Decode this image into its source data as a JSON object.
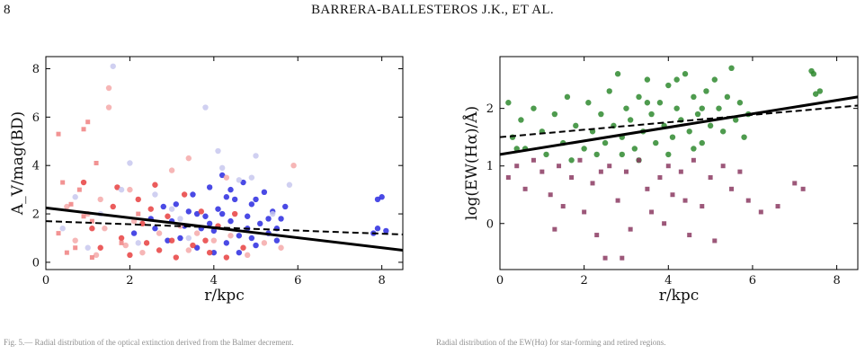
{
  "page": {
    "number": "8",
    "running_header": "BARRERA-BALLESTEROS J.K., ET AL."
  },
  "captions": {
    "left": "Fig. 5.— Radial distribution of the optical extinction derived from the Balmer decrement.",
    "right": "Radial distribution of the EW(Hα) for star-forming and retired regions."
  },
  "chart_data": [
    {
      "type": "scatter",
      "title": "",
      "xlabel": "r/kpc",
      "ylabel": "A_V/mag(BD)",
      "xlim": [
        0,
        8.5
      ],
      "ylim": [
        -0.3,
        8.5
      ],
      "xticks": [
        0,
        2,
        4,
        6,
        8
      ],
      "yticks": [
        0,
        2,
        4,
        6,
        8
      ],
      "grid": false,
      "series": [
        {
          "marker": "circle",
          "color": "#2a2ae0",
          "points": [
            [
              2.1,
              1.2
            ],
            [
              2.5,
              1.8
            ],
            [
              2.9,
              0.9
            ],
            [
              3.1,
              2.4
            ],
            [
              3.3,
              1.5
            ],
            [
              3.5,
              2.8
            ],
            [
              3.6,
              0.6
            ],
            [
              3.8,
              1.9
            ],
            [
              3.9,
              3.1
            ],
            [
              4.0,
              1.3
            ],
            [
              4.1,
              2.2
            ],
            [
              4.2,
              3.6
            ],
            [
              4.3,
              0.8
            ],
            [
              4.4,
              1.7
            ],
            [
              4.5,
              2.6
            ],
            [
              4.6,
              1.1
            ],
            [
              4.7,
              3.3
            ],
            [
              4.8,
              1.9
            ],
            [
              4.9,
              2.4
            ],
            [
              5.0,
              0.7
            ],
            [
              5.1,
              1.6
            ],
            [
              5.2,
              2.9
            ],
            [
              5.3,
              1.2
            ],
            [
              5.4,
              2.1
            ],
            [
              5.5,
              0.9
            ],
            [
              5.6,
              1.8
            ],
            [
              5.7,
              2.3
            ],
            [
              4.2,
              2.0
            ],
            [
              4.0,
              0.4
            ],
            [
              3.7,
              1.4
            ],
            [
              3.4,
              2.1
            ],
            [
              3.2,
              1.0
            ],
            [
              2.8,
              2.3
            ],
            [
              2.6,
              1.4
            ],
            [
              4.6,
              0.4
            ],
            [
              5.0,
              2.6
            ],
            [
              4.4,
              3.0
            ],
            [
              3.9,
              1.6
            ],
            [
              4.8,
              1.4
            ],
            [
              5.3,
              1.8
            ],
            [
              7.9,
              2.6
            ],
            [
              8.0,
              2.7
            ],
            [
              7.9,
              1.4
            ],
            [
              8.1,
              1.3
            ],
            [
              7.8,
              1.2
            ],
            [
              4.3,
              2.7
            ],
            [
              3.6,
              2.0
            ],
            [
              4.9,
              1.0
            ],
            [
              5.5,
              1.4
            ],
            [
              3.0,
              1.7
            ]
          ]
        },
        {
          "marker": "circle",
          "color": "#e84040",
          "points": [
            [
              0.9,
              3.3
            ],
            [
              1.1,
              1.4
            ],
            [
              1.3,
              0.6
            ],
            [
              1.6,
              2.3
            ],
            [
              1.8,
              1.0
            ],
            [
              2.0,
              0.3
            ],
            [
              2.2,
              2.6
            ],
            [
              2.4,
              0.8
            ],
            [
              2.6,
              3.2
            ],
            [
              2.7,
              0.5
            ],
            [
              2.9,
              1.9
            ],
            [
              3.1,
              0.2
            ],
            [
              3.3,
              2.8
            ],
            [
              3.5,
              0.7
            ],
            [
              3.7,
              2.1
            ],
            [
              3.9,
              0.4
            ],
            [
              4.1,
              1.5
            ],
            [
              4.3,
              0.2
            ],
            [
              4.5,
              2.0
            ],
            [
              4.7,
              0.6
            ],
            [
              2.3,
              1.6
            ],
            [
              1.7,
              3.1
            ],
            [
              3.0,
              0.9
            ],
            [
              3.8,
              0.9
            ],
            [
              2.5,
              2.2
            ]
          ]
        },
        {
          "marker": "circle",
          "color": "#f4a9a9",
          "points": [
            [
              0.7,
              0.9
            ],
            [
              1.0,
              2.0
            ],
            [
              1.2,
              0.3
            ],
            [
              1.4,
              1.4
            ],
            [
              1.5,
              7.2
            ],
            [
              1.5,
              6.4
            ],
            [
              1.9,
              0.7
            ],
            [
              2.1,
              1.7
            ],
            [
              2.3,
              0.4
            ],
            [
              2.7,
              1.2
            ],
            [
              3.2,
              1.5
            ],
            [
              3.4,
              0.5
            ],
            [
              3.6,
              1.2
            ],
            [
              4.0,
              0.9
            ],
            [
              4.4,
              1.1
            ],
            [
              4.8,
              0.3
            ],
            [
              5.2,
              0.8
            ],
            [
              5.6,
              0.6
            ],
            [
              5.9,
              4.0
            ],
            [
              2.0,
              3.0
            ],
            [
              3.0,
              3.8
            ],
            [
              3.4,
              4.3
            ],
            [
              4.3,
              3.5
            ],
            [
              1.3,
              2.6
            ],
            [
              0.5,
              2.3
            ]
          ]
        },
        {
          "marker": "circle",
          "color": "#c8c8ee",
          "points": [
            [
              0.4,
              1.4
            ],
            [
              0.7,
              2.7
            ],
            [
              1.0,
              0.6
            ],
            [
              1.3,
              2.0
            ],
            [
              1.6,
              8.1
            ],
            [
              1.8,
              3.0
            ],
            [
              2.2,
              0.8
            ],
            [
              2.6,
              2.8
            ],
            [
              3.0,
              2.2
            ],
            [
              3.4,
              1.0
            ],
            [
              3.8,
              6.4
            ],
            [
              4.2,
              3.9
            ],
            [
              4.6,
              3.4
            ],
            [
              5.0,
              4.4
            ],
            [
              5.4,
              2.0
            ],
            [
              5.8,
              3.2
            ],
            [
              2.0,
              4.1
            ],
            [
              4.1,
              4.6
            ],
            [
              4.9,
              3.5
            ],
            [
              3.2,
              1.8
            ]
          ]
        },
        {
          "marker": "square",
          "color": "#f08080",
          "points": [
            [
              0.3,
              1.2
            ],
            [
              0.5,
              0.4
            ],
            [
              0.7,
              0.6
            ],
            [
              0.9,
              1.9
            ],
            [
              1.1,
              1.7
            ],
            [
              0.8,
              3.0
            ],
            [
              0.6,
              2.4
            ],
            [
              0.3,
              5.3
            ],
            [
              0.9,
              5.5
            ],
            [
              1.0,
              5.8
            ],
            [
              1.2,
              4.1
            ],
            [
              0.4,
              3.3
            ],
            [
              1.1,
              0.2
            ],
            [
              1.8,
              0.8
            ],
            [
              2.2,
              2.0
            ]
          ]
        }
      ],
      "fits": [
        {
          "style": "solid",
          "x": [
            0,
            8.5
          ],
          "y": [
            2.25,
            0.5
          ]
        },
        {
          "style": "dashed",
          "x": [
            0,
            8.5
          ],
          "y": [
            1.7,
            1.15
          ]
        }
      ]
    },
    {
      "type": "scatter",
      "title": "",
      "xlabel": "r/kpc",
      "ylabel": "log(EW(Hα)/Å)",
      "xlim": [
        0,
        8.5
      ],
      "ylim": [
        -0.8,
        2.9
      ],
      "xticks": [
        0,
        2,
        4,
        6,
        8
      ],
      "yticks": [
        0,
        1,
        2
      ],
      "grid": false,
      "series": [
        {
          "name": "",
          "marker": "circle",
          "color": "#2f8a2f",
          "points": [
            [
              0.3,
              1.5
            ],
            [
              0.5,
              1.8
            ],
            [
              0.6,
              1.3
            ],
            [
              0.8,
              2.0
            ],
            [
              1.0,
              1.6
            ],
            [
              1.1,
              1.2
            ],
            [
              1.3,
              1.9
            ],
            [
              1.5,
              1.4
            ],
            [
              1.6,
              2.2
            ],
            [
              1.8,
              1.7
            ],
            [
              2.0,
              1.3
            ],
            [
              2.1,
              2.1
            ],
            [
              2.2,
              1.6
            ],
            [
              2.4,
              1.9
            ],
            [
              2.5,
              1.4
            ],
            [
              2.6,
              2.3
            ],
            [
              2.7,
              1.7
            ],
            [
              2.8,
              2.6
            ],
            [
              2.9,
              1.5
            ],
            [
              3.0,
              2.0
            ],
            [
              3.1,
              1.8
            ],
            [
              3.2,
              1.3
            ],
            [
              3.3,
              2.2
            ],
            [
              3.4,
              1.6
            ],
            [
              3.5,
              2.5
            ],
            [
              3.6,
              1.9
            ],
            [
              3.7,
              1.4
            ],
            [
              3.8,
              2.1
            ],
            [
              3.9,
              1.7
            ],
            [
              4.0,
              2.4
            ],
            [
              4.1,
              1.5
            ],
            [
              4.2,
              2.0
            ],
            [
              4.3,
              1.8
            ],
            [
              4.4,
              2.6
            ],
            [
              4.5,
              1.6
            ],
            [
              4.6,
              2.2
            ],
            [
              4.7,
              1.9
            ],
            [
              4.8,
              1.4
            ],
            [
              4.9,
              2.3
            ],
            [
              5.0,
              1.7
            ],
            [
              5.1,
              2.5
            ],
            [
              5.2,
              2.0
            ],
            [
              5.3,
              1.6
            ],
            [
              5.4,
              2.2
            ],
            [
              5.5,
              2.7
            ],
            [
              5.6,
              1.8
            ],
            [
              5.7,
              2.1
            ],
            [
              5.8,
              1.5
            ],
            [
              5.9,
              1.9
            ],
            [
              3.3,
              1.1
            ],
            [
              4.0,
              1.2
            ],
            [
              4.6,
              1.3
            ],
            [
              2.3,
              1.2
            ],
            [
              1.7,
              1.1
            ],
            [
              0.2,
              2.1
            ],
            [
              0.4,
              1.3
            ],
            [
              3.5,
              2.1
            ],
            [
              4.2,
              2.5
            ],
            [
              4.8,
              2.0
            ],
            [
              2.9,
              1.2
            ],
            [
              7.4,
              2.65
            ],
            [
              7.5,
              2.25
            ],
            [
              7.6,
              2.3
            ],
            [
              7.45,
              2.6
            ]
          ]
        },
        {
          "name": "",
          "marker": "square",
          "color": "#8b3a62",
          "points": [
            [
              0.2,
              0.8
            ],
            [
              0.4,
              1.0
            ],
            [
              0.6,
              0.6
            ],
            [
              0.8,
              1.1
            ],
            [
              1.0,
              0.9
            ],
            [
              1.2,
              0.5
            ],
            [
              1.4,
              1.0
            ],
            [
              1.5,
              0.3
            ],
            [
              1.7,
              0.8
            ],
            [
              1.9,
              1.1
            ],
            [
              2.0,
              0.2
            ],
            [
              2.2,
              0.7
            ],
            [
              2.3,
              -0.2
            ],
            [
              2.4,
              0.9
            ],
            [
              2.5,
              -0.6
            ],
            [
              2.6,
              1.0
            ],
            [
              2.8,
              0.4
            ],
            [
              3.0,
              0.9
            ],
            [
              3.1,
              -0.1
            ],
            [
              3.3,
              1.1
            ],
            [
              3.5,
              0.6
            ],
            [
              3.6,
              0.2
            ],
            [
              3.8,
              0.8
            ],
            [
              4.0,
              1.0
            ],
            [
              4.1,
              0.5
            ],
            [
              4.3,
              0.9
            ],
            [
              4.5,
              -0.2
            ],
            [
              4.6,
              1.1
            ],
            [
              4.8,
              0.3
            ],
            [
              5.0,
              0.8
            ],
            [
              5.1,
              -0.3
            ],
            [
              5.3,
              1.0
            ],
            [
              5.5,
              0.6
            ],
            [
              5.7,
              0.9
            ],
            [
              5.9,
              0.4
            ],
            [
              6.2,
              0.2
            ],
            [
              6.6,
              0.3
            ],
            [
              7.0,
              0.7
            ],
            [
              7.2,
              0.6
            ],
            [
              1.3,
              -0.1
            ],
            [
              2.9,
              -0.6
            ],
            [
              3.9,
              0.0
            ],
            [
              4.4,
              0.4
            ]
          ]
        }
      ],
      "fits": [
        {
          "style": "solid",
          "x": [
            0,
            8.5
          ],
          "y": [
            1.2,
            2.2
          ]
        },
        {
          "style": "dashed",
          "x": [
            0,
            8.5
          ],
          "y": [
            1.5,
            2.05
          ]
        }
      ]
    }
  ]
}
